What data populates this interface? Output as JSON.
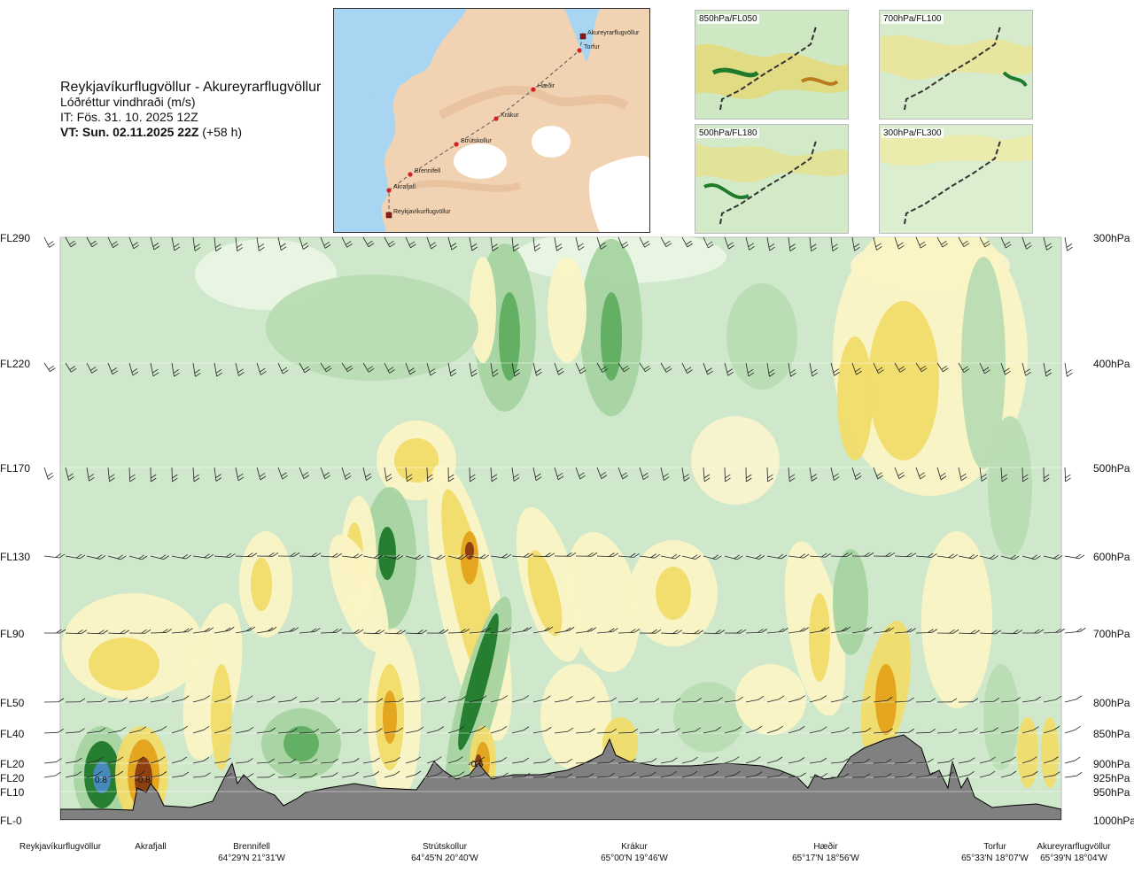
{
  "title": {
    "route": "Reykjavíkurflugvöllur - Akureyrarflugvöllur",
    "parameter": "Lóðréttur vindhraði (m/s)",
    "it": "IT: Fös. 31. 10. 2025 12Z",
    "vt_bold": "VT: Sun. 02.11.2025 22Z",
    "vt_rest": " (+58 h)"
  },
  "main_map": {
    "waypoints": [
      {
        "name": "Akureyrarflugvöllur",
        "marker": "square"
      },
      {
        "name": "Torfur",
        "marker": "dot"
      },
      {
        "name": "Hæðir",
        "marker": "dot"
      },
      {
        "name": "Krákur",
        "marker": "dot"
      },
      {
        "name": "Strútskollur",
        "marker": "dot"
      },
      {
        "name": "Brennifell",
        "marker": "dot"
      },
      {
        "name": "Akrafjall",
        "marker": "dot"
      },
      {
        "name": "Reykjavíkurflugvöllur",
        "marker": "square"
      }
    ]
  },
  "mini_maps": [
    {
      "label": "850hPa/FL050"
    },
    {
      "label": "700hPa/FL100"
    },
    {
      "label": "500hPa/FL180"
    },
    {
      "label": "300hPa/FL300"
    }
  ],
  "colors": {
    "strong_up": "#1f7a2b",
    "up": "#a7d3a0",
    "weak_up": "#cfe8cb",
    "neutral": "#eef7e6",
    "weak_down": "#fbf4c4",
    "down": "#f0dc6a",
    "strong_down": "#e3a21a",
    "very_strong_down": "#8a3a10",
    "terrain": "#808080",
    "route": "#d62020"
  },
  "chart_data": {
    "type": "heatmap",
    "title": "Lóðréttur vindhraði (m/s)",
    "x_axis_locations": [
      {
        "name": "Reykjavíkurflugvöllur",
        "coord": ""
      },
      {
        "name": "Akrafjall",
        "coord": ""
      },
      {
        "name": "Brennifell",
        "coord": "64°29'N 21°31'W"
      },
      {
        "name": "Strútskollur",
        "coord": "64°45'N 20°40'W"
      },
      {
        "name": "Krákur",
        "coord": "65°00'N 19°46'W"
      },
      {
        "name": "Hæðir",
        "coord": "65°17'N 18°56'W"
      },
      {
        "name": "Torfur",
        "coord": "65°33'N 18°07'W"
      },
      {
        "name": "Akureyrarflugvöllur",
        "coord": "65°39'N 18°04'W"
      }
    ],
    "left_axis_levels": [
      "FL290",
      "FL220",
      "FL170",
      "FL130",
      "FL90",
      "FL50",
      "FL40",
      "FL20",
      "FL20",
      "FL10",
      "FL-0"
    ],
    "right_axis_levels": [
      "300hPa",
      "400hPa",
      "500hPa",
      "600hPa",
      "700hPa",
      "800hPa",
      "850hPa",
      "900hPa",
      "925hPa",
      "950hPa",
      "1000hPa"
    ],
    "field_labels": [
      {
        "text": "0.8",
        "near": "Reykjavíkurflugvöllur"
      },
      {
        "text": "-0.8",
        "near": "Akrafjall"
      },
      {
        "text": "-0.6",
        "near": "Strútskollur"
      }
    ],
    "grid": true
  }
}
